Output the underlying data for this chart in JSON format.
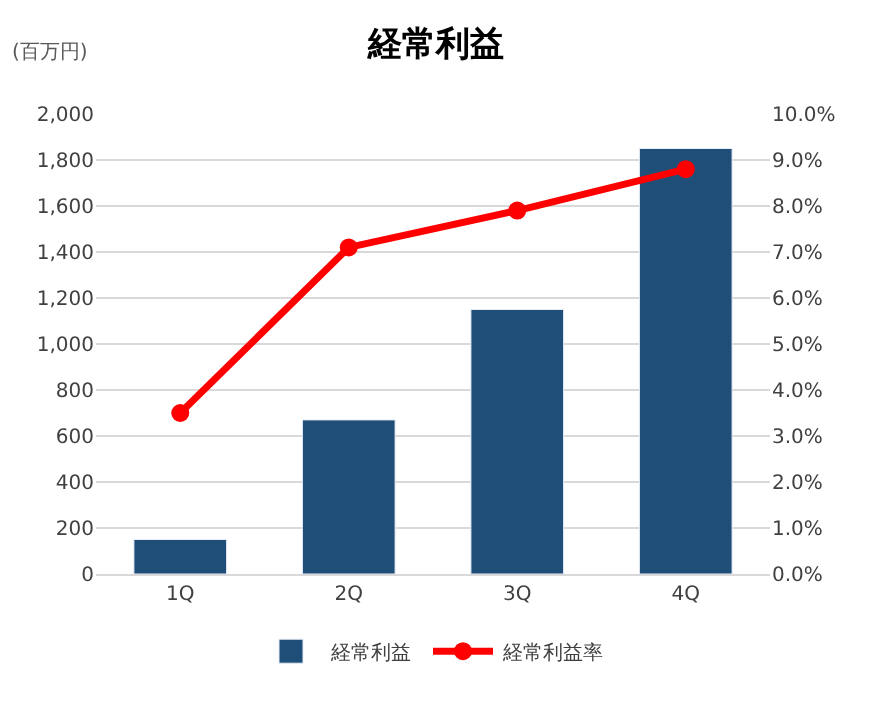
{
  "chart_data": {
    "type": "bar",
    "title": "経常利益",
    "ylabel": "(百万円)",
    "categories": [
      "1Q",
      "2Q",
      "3Q",
      "4Q"
    ],
    "series": [
      {
        "name": "経常利益",
        "color": "#1f4e79",
        "values": [
          150,
          670,
          1150,
          1850
        ]
      },
      {
        "name": "経常利益率",
        "type": "line",
        "axis": "y2",
        "color": "#ff0000",
        "values": [
          3.5,
          7.1,
          7.9,
          8.8
        ]
      }
    ],
    "ylim": [
      0,
      2000
    ],
    "yticks": [
      {
        "value": 0,
        "label": "0"
      },
      {
        "value": 200,
        "label": "200"
      },
      {
        "value": 400,
        "label": "400"
      },
      {
        "value": 600,
        "label": "600"
      },
      {
        "value": 800,
        "label": "800"
      },
      {
        "value": 1000,
        "label": "1,000"
      },
      {
        "value": 1200,
        "label": "1,200"
      },
      {
        "value": 1400,
        "label": "1,400"
      },
      {
        "value": 1600,
        "label": "1,600"
      },
      {
        "value": 1800,
        "label": "1,800"
      },
      {
        "value": 2000,
        "label": "2,000"
      }
    ],
    "y2lim": [
      0,
      10
    ],
    "y2ticks": [
      {
        "value": 0,
        "label": "0.0%"
      },
      {
        "value": 1,
        "label": "1.0%"
      },
      {
        "value": 2,
        "label": "2.0%"
      },
      {
        "value": 3,
        "label": "3.0%"
      },
      {
        "value": 4,
        "label": "4.0%"
      },
      {
        "value": 5,
        "label": "5.0%"
      },
      {
        "value": 6,
        "label": "6.0%"
      },
      {
        "value": 7,
        "label": "7.0%"
      },
      {
        "value": 8,
        "label": "8.0%"
      },
      {
        "value": 9,
        "label": "9.0%"
      },
      {
        "value": 10,
        "label": "10.0%"
      }
    ],
    "grid": "y",
    "legend": "bottom",
    "marker": "circle",
    "line_style": "solid"
  }
}
